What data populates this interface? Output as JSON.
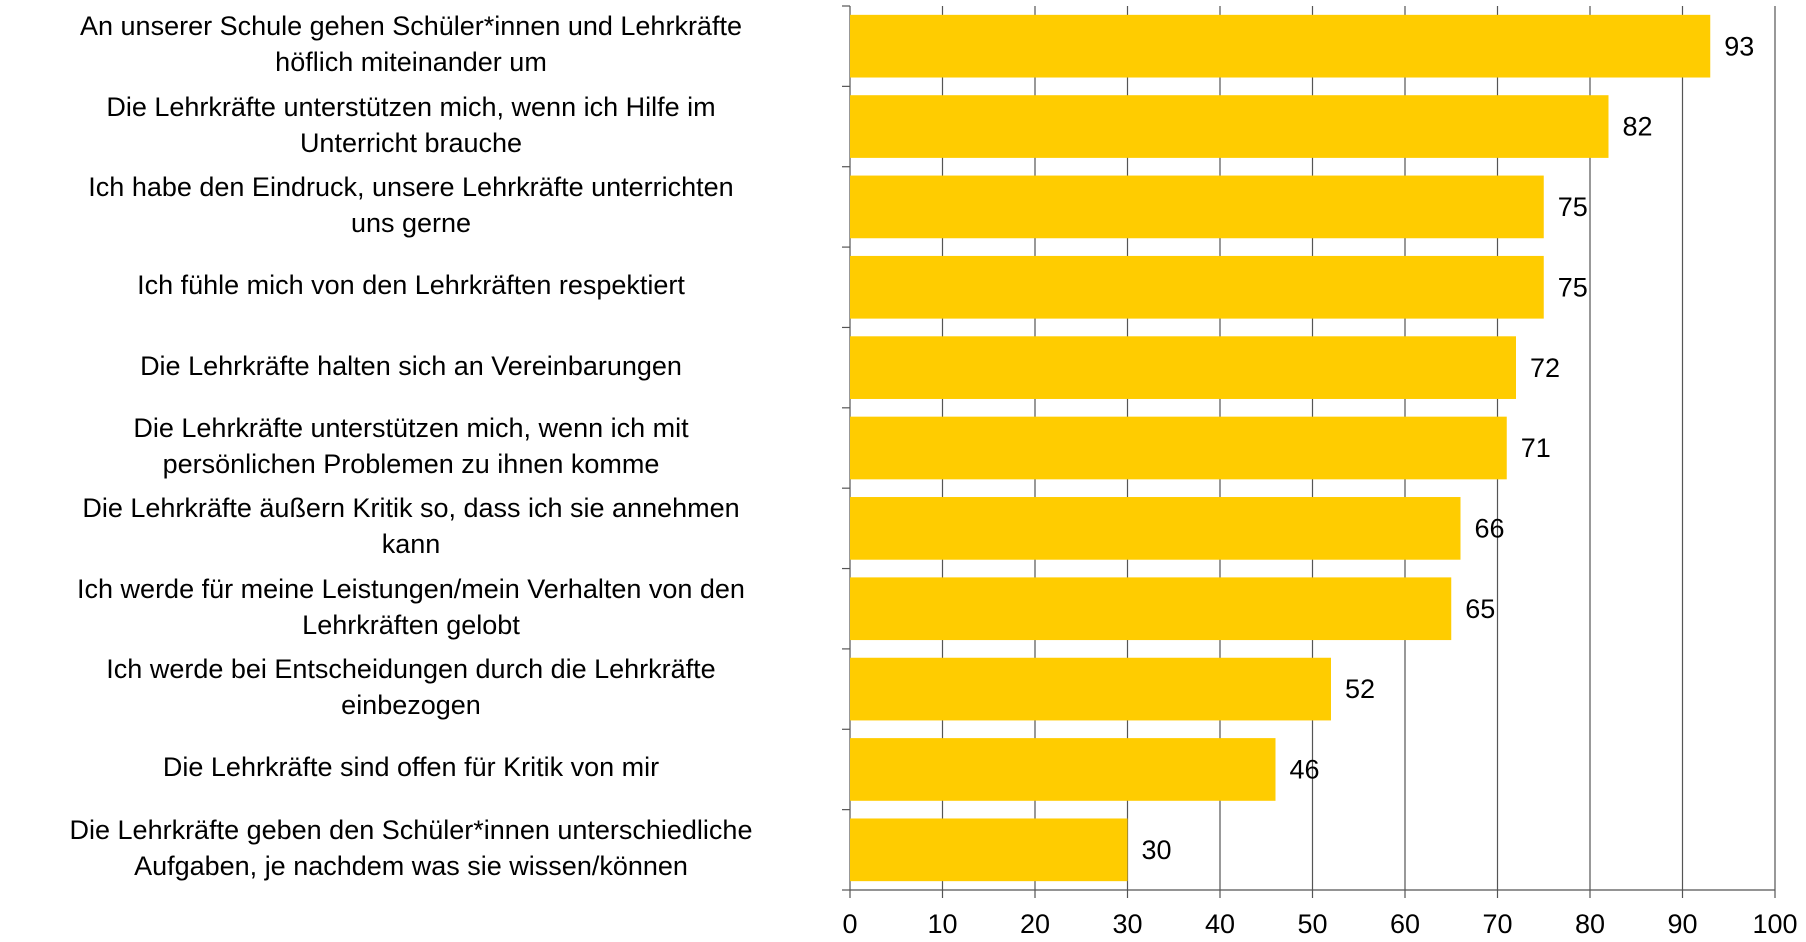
{
  "chart_data": {
    "type": "barh",
    "categories": [
      "An unserer Schule gehen Schüler*innen und Lehrkräfte\nhöflich miteinander um",
      "Die Lehrkräfte unterstützen mich, wenn ich Hilfe im\nUnterricht brauche",
      "Ich habe den Eindruck, unsere Lehrkräfte unterrichten\nuns gerne",
      "Ich fühle mich von den Lehrkräften respektiert",
      "Die Lehrkräfte halten sich an Vereinbarungen",
      "Die Lehrkräfte unterstützen mich, wenn ich mit\npersönlichen Problemen zu ihnen komme",
      "Die Lehrkräfte äußern Kritik so, dass ich sie annehmen\nkann",
      "Ich werde für meine Leistungen/mein Verhalten von den\nLehrkräften gelobt",
      "Ich werde bei Entscheidungen durch die Lehrkräfte\neinbezogen",
      "Die Lehrkräfte sind offen für Kritik von mir",
      "Die Lehrkräfte geben den Schüler*innen unterschiedliche\nAufgaben, je nachdem was sie wissen/können"
    ],
    "values": [
      93,
      82,
      75,
      75,
      72,
      71,
      66,
      65,
      52,
      46,
      30
    ],
    "color": "#ffcc00",
    "xlim": [
      0,
      100
    ],
    "xticks": [
      0,
      10,
      20,
      30,
      40,
      50,
      60,
      70,
      80,
      90,
      100
    ],
    "grid": true
  }
}
